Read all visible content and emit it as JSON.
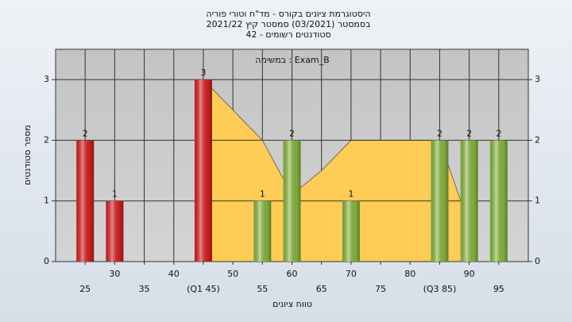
{
  "chart_data": {
    "type": "bar",
    "title": "היסטוגרמת ציונים בקורס - מד\"ח וטורי פוריה",
    "subtitle": "בסמסטר (03/2021) סמסטר קיץ 2021/22",
    "subtitle2": "סטודנטים רשומים - 42",
    "annotation": "במשימה : Exam_B",
    "x_label": "טווח ציונים",
    "y_label": "מספר סטודנטים",
    "categories": [
      "25",
      "30",
      "35",
      "40",
      "(Q1 45)",
      "50",
      "55",
      "60",
      "65",
      "70",
      "75",
      "80",
      "(Q3 85)",
      "90",
      "95"
    ],
    "values": [
      2,
      1,
      0,
      0,
      3,
      0,
      1,
      2,
      0,
      1,
      0,
      0,
      2,
      2,
      2
    ],
    "colors": [
      "#e02222",
      "#e02222",
      "#e02222",
      "#e02222",
      "#e02222",
      "#8fc043",
      "#8fc043",
      "#8fc043",
      "#8fc043",
      "#8fc043",
      "#8fc043",
      "#8fc043",
      "#8fc043",
      "#8fc043",
      "#8fc043"
    ],
    "area": {
      "color": "#ffcc55",
      "values": [
        null,
        null,
        null,
        null,
        3,
        2.5,
        2,
        1.1,
        1.5,
        2,
        2,
        2,
        2,
        0.6,
        null
      ]
    },
    "ylim": [
      0,
      3.5
    ],
    "yticks": [
      0,
      1,
      2,
      3
    ],
    "grid": true
  }
}
